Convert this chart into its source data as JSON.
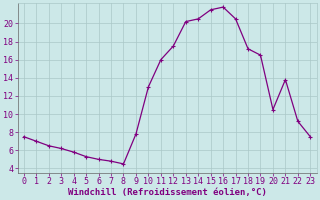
{
  "x": [
    0,
    1,
    2,
    3,
    4,
    5,
    6,
    7,
    8,
    9,
    10,
    11,
    12,
    13,
    14,
    15,
    16,
    17,
    18,
    19,
    20,
    21,
    22,
    23
  ],
  "y": [
    7.5,
    7.0,
    6.5,
    6.2,
    5.8,
    5.3,
    5.0,
    4.8,
    4.5,
    7.8,
    13.0,
    16.0,
    17.5,
    20.2,
    20.5,
    21.5,
    21.8,
    20.5,
    17.2,
    16.5,
    10.5,
    13.8,
    9.2,
    7.5
  ],
  "line_color": "#800080",
  "marker": "+",
  "bg_color": "#cce8e8",
  "grid_color": "#aac8c8",
  "xlabel": "Windchill (Refroidissement éolien,°C)",
  "xlim": [
    -0.5,
    23.5
  ],
  "ylim": [
    3.5,
    22.2
  ],
  "yticks": [
    4,
    6,
    8,
    10,
    12,
    14,
    16,
    18,
    20
  ],
  "xticks": [
    0,
    1,
    2,
    3,
    4,
    5,
    6,
    7,
    8,
    9,
    10,
    11,
    12,
    13,
    14,
    15,
    16,
    17,
    18,
    19,
    20,
    21,
    22,
    23
  ],
  "font_color": "#800080",
  "tick_font_size": 6,
  "xlabel_font_size": 6.5
}
